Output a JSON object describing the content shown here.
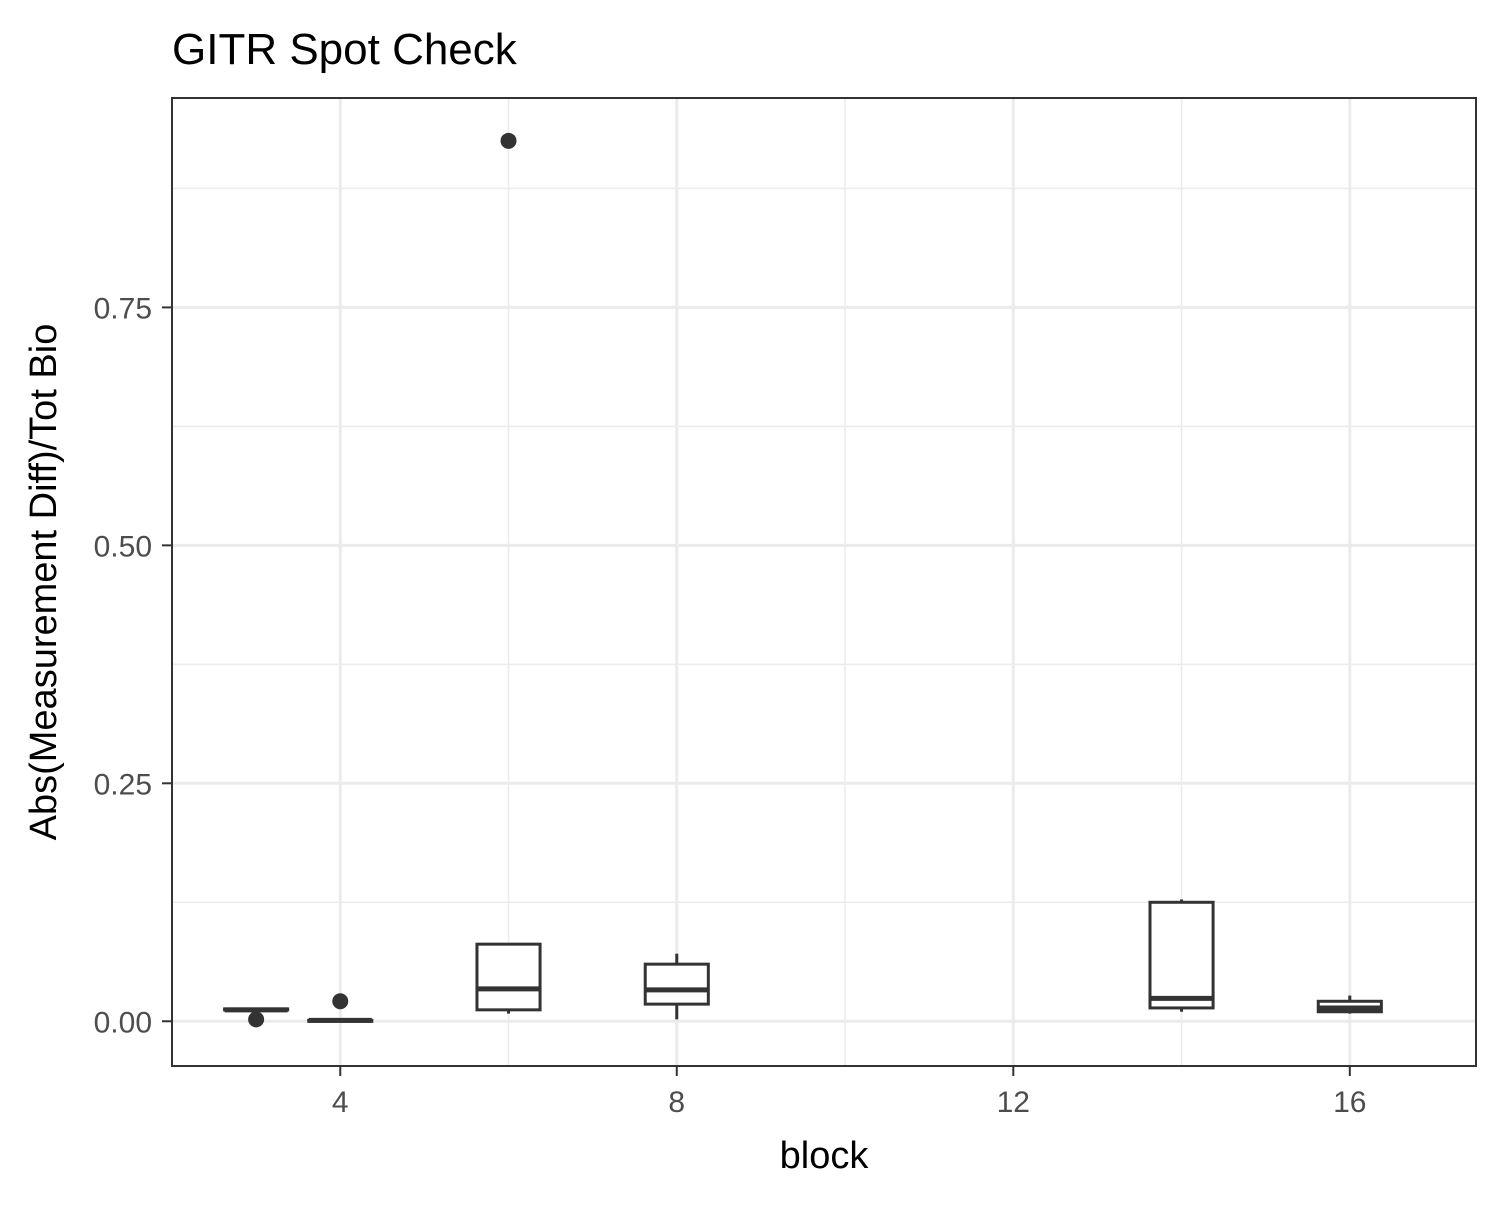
{
  "chart_data": {
    "type": "boxplot",
    "title": "GITR Spot Check",
    "xlabel": "block",
    "ylabel": "Abs(Measurement Diff)/Tot Bio",
    "xlim": [
      2,
      17.5
    ],
    "ylim": [
      -0.047,
      0.97
    ],
    "x_ticks": [
      4,
      8,
      12,
      16
    ],
    "x_tick_labels": [
      "4",
      "8",
      "12",
      "16"
    ],
    "y_ticks": [
      0.0,
      0.25,
      0.5,
      0.75
    ],
    "y_tick_labels": [
      "0.00",
      "0.25",
      "0.50",
      "0.75"
    ],
    "grid": true,
    "boxes": [
      {
        "block": 3,
        "min": 0.012,
        "q1": 0.012,
        "median": 0.012,
        "q3": 0.013,
        "max": 0.013,
        "outliers": [
          0.002
        ]
      },
      {
        "block": 4,
        "min": 0.0,
        "q1": 0.0,
        "median": 0.001,
        "q3": 0.001,
        "max": 0.001,
        "outliers": [
          0.021
        ]
      },
      {
        "block": 6,
        "min": 0.008,
        "q1": 0.012,
        "median": 0.034,
        "q3": 0.081,
        "max": 0.081,
        "outliers": [
          0.925
        ]
      },
      {
        "block": 8,
        "min": 0.002,
        "q1": 0.018,
        "median": 0.033,
        "q3": 0.06,
        "max": 0.071,
        "outliers": []
      },
      {
        "block": 14,
        "min": 0.01,
        "q1": 0.014,
        "median": 0.024,
        "q3": 0.125,
        "max": 0.128,
        "outliers": []
      },
      {
        "block": 16,
        "min": 0.008,
        "q1": 0.01,
        "median": 0.014,
        "q3": 0.021,
        "max": 0.027,
        "outliers": []
      }
    ]
  }
}
